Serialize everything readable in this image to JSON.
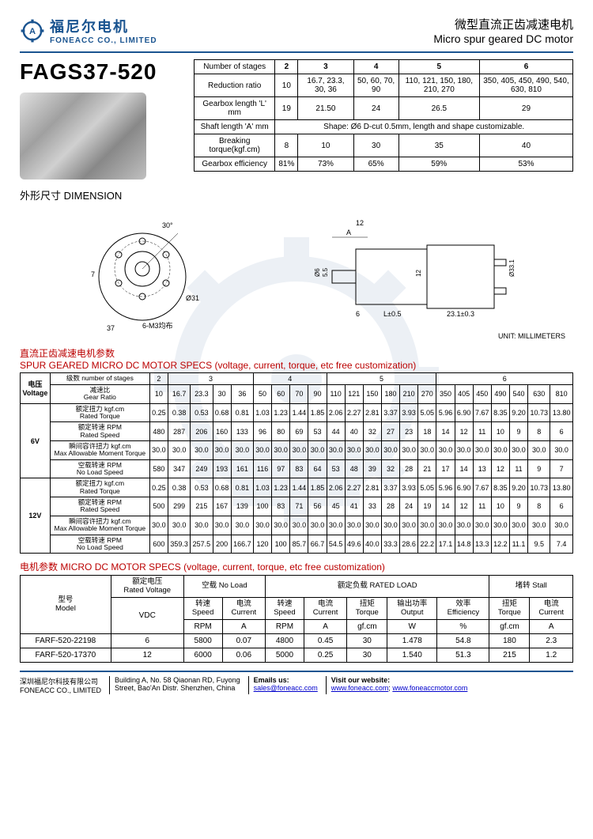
{
  "logo": {
    "cn": "福尼尔电机",
    "en": "FONEACC CO., LIMITED"
  },
  "title": {
    "cn": "微型直流正齿减速电机",
    "en": "Micro spur geared DC motor"
  },
  "model": "FAGS37-520",
  "t1": {
    "headers": [
      "Number of stages",
      "2",
      "3",
      "4",
      "5",
      "6"
    ],
    "rows": [
      [
        "Reduction ratio",
        "10",
        "16.7, 23.3, 30, 36",
        "50, 60, 70, 90",
        "110, 121, 150, 180, 210, 270",
        "350, 405, 450, 490, 540, 630, 810"
      ],
      [
        "Gearbox length 'L' mm",
        "19",
        "21.50",
        "24",
        "26.5",
        "29"
      ]
    ],
    "shaft_label": "Shaft length 'A' mm",
    "shaft_text": "Shape: Ø6 D-cut 0.5mm, length and shape customizable.",
    "rows2": [
      [
        "Breaking torque(kgf.cm)",
        "8",
        "10",
        "30",
        "35",
        "40"
      ],
      [
        "Gearbox efficiency",
        "81%",
        "73%",
        "65%",
        "59%",
        "53%"
      ]
    ]
  },
  "dim_title": {
    "cn": "外形尺寸",
    "en": "DIMENSION"
  },
  "unit": "UNIT: MILLIMETERS",
  "specs_title": {
    "cn": "直流正齿减速电机参数",
    "en": "SPUR GEARED MICRO DC MOTOR SPECS (voltage, current, torque, etc free customization)"
  },
  "t2": {
    "voltage_h": {
      "cn": "电压",
      "en": "Voltage"
    },
    "stages_h": {
      "cn": "级数",
      "en": "number of stages"
    },
    "stages": [
      "2",
      "3",
      "4",
      "5",
      "6"
    ],
    "stage_spans": [
      1,
      4,
      4,
      6,
      7
    ],
    "gr_label": {
      "cn": "减速比",
      "en": "Gear Ratio"
    },
    "ratios": [
      "10",
      "16.7",
      "23.3",
      "30",
      "36",
      "50",
      "60",
      "70",
      "90",
      "110",
      "121",
      "150",
      "180",
      "210",
      "270",
      "350",
      "405",
      "450",
      "490",
      "540",
      "630",
      "810"
    ],
    "row_labels": [
      {
        "cn": "额定扭力 kgf.cm",
        "en": "Rated Torque"
      },
      {
        "cn": "额定转速 RPM",
        "en": "Rated Speed"
      },
      {
        "cn": "瞬间容许扭力 kgf.cm",
        "en": "Max Allowable Moment Torque"
      },
      {
        "cn": "空载转速 RPM",
        "en": "No Load Speed"
      }
    ],
    "v6": "6V",
    "v6_data": [
      [
        "0.25",
        "0.38",
        "0.53",
        "0.68",
        "0.81",
        "1.03",
        "1.23",
        "1.44",
        "1.85",
        "2.06",
        "2.27",
        "2.81",
        "3.37",
        "3.93",
        "5.05",
        "5.96",
        "6.90",
        "7.67",
        "8.35",
        "9.20",
        "10.73",
        "13.80"
      ],
      [
        "480",
        "287",
        "206",
        "160",
        "133",
        "96",
        "80",
        "69",
        "53",
        "44",
        "40",
        "32",
        "27",
        "23",
        "18",
        "14",
        "12",
        "11",
        "10",
        "9",
        "8",
        "6"
      ],
      [
        "30.0",
        "30.0",
        "30.0",
        "30.0",
        "30.0",
        "30.0",
        "30.0",
        "30.0",
        "30.0",
        "30.0",
        "30.0",
        "30.0",
        "30.0",
        "30.0",
        "30.0",
        "30.0",
        "30.0",
        "30.0",
        "30.0",
        "30.0",
        "30.0",
        "30.0"
      ],
      [
        "580",
        "347",
        "249",
        "193",
        "161",
        "116",
        "97",
        "83",
        "64",
        "53",
        "48",
        "39",
        "32",
        "28",
        "21",
        "17",
        "14",
        "13",
        "12",
        "11",
        "9",
        "7"
      ]
    ],
    "v12": "12V",
    "v12_data": [
      [
        "0.25",
        "0.38",
        "0.53",
        "0.68",
        "0.81",
        "1.03",
        "1.23",
        "1.44",
        "1.85",
        "2.06",
        "2.27",
        "2.81",
        "3.37",
        "3.93",
        "5.05",
        "5.96",
        "6.90",
        "7.67",
        "8.35",
        "9.20",
        "10.73",
        "13.80"
      ],
      [
        "500",
        "299",
        "215",
        "167",
        "139",
        "100",
        "83",
        "71",
        "56",
        "45",
        "41",
        "33",
        "28",
        "24",
        "19",
        "14",
        "12",
        "11",
        "10",
        "9",
        "8",
        "6"
      ],
      [
        "30.0",
        "30.0",
        "30.0",
        "30.0",
        "30.0",
        "30.0",
        "30.0",
        "30.0",
        "30.0",
        "30.0",
        "30.0",
        "30.0",
        "30.0",
        "30.0",
        "30.0",
        "30.0",
        "30.0",
        "30.0",
        "30.0",
        "30.0",
        "30.0",
        "30.0"
      ],
      [
        "600",
        "359.3",
        "257.5",
        "200",
        "166.7",
        "120",
        "100",
        "85.7",
        "66.7",
        "54.5",
        "49.6",
        "40.0",
        "33.3",
        "28.6",
        "22.2",
        "17.1",
        "14.8",
        "13.3",
        "12.2",
        "11.1",
        "9.5",
        "7.4"
      ]
    ]
  },
  "motor_title": {
    "cn": "电机参数",
    "en": "MICRO DC MOTOR SPECS (voltage, current, torque, etc free customization)"
  },
  "t3": {
    "h_model": {
      "cn": "型号",
      "en": "Model"
    },
    "h_voltage": {
      "cn": "额定电压",
      "en": "Rated Voltage"
    },
    "h_noload": {
      "cn": "空载",
      "en": "No Load"
    },
    "h_rated": {
      "cn": "额定负载",
      "en": "RATED LOAD"
    },
    "h_stall": {
      "cn": "堵转",
      "en": "Stall"
    },
    "sub": {
      "speed": {
        "cn": "转速",
        "en": "Speed"
      },
      "current": {
        "cn": "电流",
        "en": "Current"
      },
      "torque": {
        "cn": "扭矩",
        "en": "Torque"
      },
      "output": {
        "cn": "输出功率",
        "en": "Output"
      },
      "eff": {
        "cn": "效率",
        "en": "Efficiency"
      }
    },
    "units": [
      "VDC",
      "RPM",
      "A",
      "RPM",
      "A",
      "gf.cm",
      "W",
      "%",
      "gf.cm",
      "A"
    ],
    "rows": [
      [
        "FARF-520-22198",
        "6",
        "5800",
        "0.07",
        "4800",
        "0.45",
        "30",
        "1.478",
        "54.8",
        "180",
        "2.3"
      ],
      [
        "FARF-520-17370",
        "12",
        "6000",
        "0.06",
        "5000",
        "0.25",
        "30",
        "1.540",
        "51.3",
        "215",
        "1.2"
      ]
    ]
  },
  "footer": {
    "company_cn": "深圳福尼尔科技有限公司",
    "company_en": "FONEACC CO., LIMITED",
    "addr1": "Building A, No. 58 Qiaonan RD, Fuyong",
    "addr2": "Street, Bao'An Distr. Shenzhen, China",
    "email_h": "Emails us:",
    "email": "sales@foneacc.com",
    "web_h": "Visit our website:",
    "web1": "www.foneacc.com",
    "web2": "www.foneaccmotor.com"
  }
}
